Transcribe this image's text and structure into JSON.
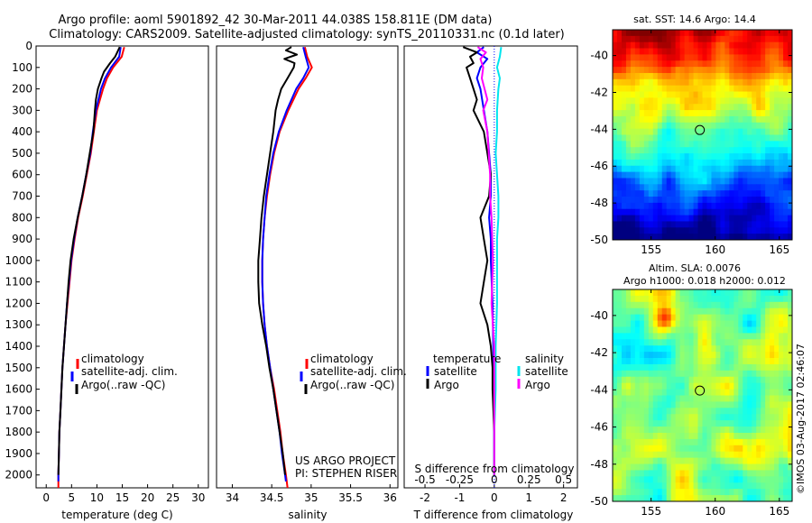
{
  "title_line1": "Argo profile: aoml 5901892_42 30-Mar-2011 44.038S 158.811E (DM data)",
  "title_line2": "Climatology: CARS2009. Satellite-adjusted climatology: synTS_20110331.nc (0.1d later)",
  "colors": {
    "climatology": "#ff0000",
    "satellite": "#0000ff",
    "argo": "#000000",
    "sal_satellite": "#00e5ee",
    "sal_argo": "#ff00ff",
    "zero_line": "#0000ff"
  },
  "legend_temp": {
    "climatology": "climatology",
    "satellite": "satellite-adj. clim.",
    "argo": "Argo(..raw -QC)"
  },
  "legend_diff": {
    "temp_header": "temperature",
    "sal_header": "salinity",
    "satellite": "satellite",
    "argo": "Argo"
  },
  "project_line1": "US ARGO PROJECT",
  "project_line2": "PI: STEPHEN RISER",
  "s_diff_label": "S difference from climatology",
  "map_top_title": "sat. SST: 14.6  Argo: 14.4",
  "map_bottom_title1": "Altim. SLA: 0.0076",
  "map_bottom_title2": "Argo h1000: 0.018  h2000: 0.012",
  "watermark": "©IMOS 03-Aug-2017 02:46:07",
  "chart_data": [
    {
      "type": "line",
      "id": "temperature",
      "xlabel": "temperature (deg C)",
      "ylabel": "",
      "xlim": [
        -2,
        32
      ],
      "ylim": [
        2060,
        0
      ],
      "xticks": [
        0,
        5,
        10,
        15,
        20,
        25,
        30
      ],
      "yticks": [
        0,
        100,
        200,
        300,
        400,
        500,
        600,
        700,
        800,
        900,
        1000,
        1100,
        1200,
        1300,
        1400,
        1500,
        1600,
        1700,
        1800,
        1900,
        2000
      ],
      "series": [
        {
          "name": "climatology",
          "color": "#ff0000",
          "depth": [
            5,
            50,
            100,
            150,
            200,
            300,
            400,
            500,
            600,
            700,
            800,
            900,
            1000,
            1100,
            1200,
            1300,
            1400,
            1500,
            1600,
            1700,
            1800,
            1900,
            2000,
            2060
          ],
          "value": [
            15.4,
            14.9,
            13.2,
            12.0,
            11.2,
            10.0,
            9.4,
            8.8,
            8.0,
            7.2,
            6.3,
            5.6,
            5.0,
            4.6,
            4.2,
            3.8,
            3.5,
            3.2,
            3.0,
            2.8,
            2.6,
            2.5,
            2.4,
            2.4
          ]
        },
        {
          "name": "satellite-adj. clim.",
          "color": "#0000ff",
          "depth": [
            5,
            50,
            100,
            150,
            200,
            300,
            400,
            500,
            600,
            700,
            800,
            900,
            1000,
            1100,
            1200,
            1300,
            1400,
            1500,
            1600,
            1700,
            1800,
            1900,
            2000,
            2030
          ],
          "value": [
            14.7,
            14.4,
            12.8,
            11.6,
            10.8,
            9.8,
            9.2,
            8.7,
            7.9,
            7.1,
            6.2,
            5.5,
            4.9,
            4.5,
            4.1,
            3.8,
            3.5,
            3.2,
            3.0,
            2.8,
            2.6,
            2.5,
            2.4,
            2.4
          ]
        },
        {
          "name": "Argo(..raw -QC)",
          "color": "#000000",
          "depth": [
            5,
            50,
            80,
            120,
            150,
            200,
            250,
            300,
            400,
            500,
            600,
            700,
            800,
            900,
            1000,
            1100,
            1200,
            1300,
            1400,
            1500,
            1600,
            1700,
            1800,
            1900,
            2000
          ],
          "value": [
            14.5,
            13.6,
            12.6,
            11.4,
            10.9,
            10.2,
            9.8,
            9.6,
            9.3,
            8.6,
            7.9,
            7.1,
            6.2,
            5.4,
            4.8,
            4.4,
            4.1,
            3.8,
            3.5,
            3.2,
            3.0,
            2.8,
            2.6,
            2.5,
            2.4
          ]
        }
      ]
    },
    {
      "type": "line",
      "id": "salinity",
      "xlabel": "salinity",
      "ylabel": "",
      "xlim": [
        33.8,
        36.1
      ],
      "ylim": [
        2060,
        0
      ],
      "xticks": [
        34,
        34.5,
        35,
        35.5,
        36
      ],
      "series": [
        {
          "name": "climatology",
          "color": "#ff0000",
          "depth": [
            5,
            50,
            100,
            150,
            200,
            300,
            400,
            500,
            600,
            700,
            800,
            900,
            1000,
            1100,
            1200,
            1300,
            1400,
            1500,
            1600,
            1700,
            1800,
            1900,
            2000,
            2060
          ],
          "value": [
            34.92,
            34.95,
            35.01,
            34.93,
            34.84,
            34.71,
            34.6,
            34.53,
            34.48,
            34.44,
            34.41,
            34.39,
            34.38,
            34.38,
            34.39,
            34.41,
            34.44,
            34.48,
            34.53,
            34.57,
            34.61,
            34.64,
            34.68,
            34.7
          ]
        },
        {
          "name": "satellite-adj. clim.",
          "color": "#0000ff",
          "depth": [
            5,
            50,
            100,
            150,
            200,
            300,
            400,
            500,
            600,
            700,
            800,
            900,
            1000,
            1100,
            1200,
            1300,
            1400,
            1500,
            1600,
            1700,
            1800,
            1900,
            2000,
            2030
          ],
          "value": [
            34.9,
            34.93,
            34.97,
            34.9,
            34.81,
            34.69,
            34.59,
            34.52,
            34.47,
            34.43,
            34.41,
            34.39,
            34.38,
            34.38,
            34.39,
            34.41,
            34.44,
            34.48,
            34.52,
            34.56,
            34.6,
            34.63,
            34.67,
            34.68
          ]
        },
        {
          "name": "Argo(..raw -QC)",
          "color": "#000000",
          "depth": [
            5,
            20,
            40,
            60,
            80,
            100,
            150,
            200,
            250,
            300,
            400,
            500,
            600,
            700,
            800,
            900,
            1000,
            1100,
            1200,
            1300,
            1400,
            1500,
            1600,
            1700,
            1800,
            1900,
            2000
          ],
          "value": [
            34.75,
            34.68,
            34.82,
            34.66,
            34.79,
            34.78,
            34.7,
            34.62,
            34.58,
            34.55,
            34.52,
            34.48,
            34.44,
            34.4,
            34.37,
            34.35,
            34.33,
            34.33,
            34.34,
            34.38,
            34.43,
            34.47,
            34.52,
            34.56,
            34.6,
            34.64,
            34.67
          ]
        }
      ]
    },
    {
      "type": "line",
      "id": "difference",
      "xlabel": "T difference from climatology",
      "ylabel": "",
      "xlim": [
        -2.6,
        2.4
      ],
      "ylim": [
        2060,
        0
      ],
      "xticks": [
        -2,
        -1,
        0,
        1,
        2
      ],
      "s_xticks_labels": [
        "-0.5",
        "-0.25",
        "0",
        "0.25",
        "0.5"
      ],
      "s_scale": 4,
      "series": [
        {
          "name": "temperature satellite",
          "color": "#0000ff",
          "variable": "T",
          "depth": [
            5,
            30,
            60,
            100,
            150,
            200,
            300,
            400,
            500,
            600,
            700,
            800,
            900,
            1000,
            1200,
            1400,
            1600,
            1800,
            2000
          ],
          "value": [
            -0.3,
            -0.5,
            -0.2,
            -0.4,
            -0.5,
            -0.4,
            -0.3,
            -0.2,
            -0.15,
            -0.1,
            -0.1,
            -0.15,
            -0.1,
            -0.1,
            -0.05,
            -0.03,
            0.0,
            0.0,
            0.0
          ]
        },
        {
          "name": "temperature Argo",
          "color": "#000000",
          "variable": "T",
          "depth": [
            5,
            30,
            50,
            80,
            100,
            150,
            200,
            250,
            300,
            400,
            500,
            600,
            700,
            800,
            900,
            1000,
            1100,
            1200,
            1300,
            1400,
            1500,
            1600,
            1800,
            2000
          ],
          "value": [
            -0.9,
            -0.5,
            -0.7,
            -0.6,
            -0.8,
            -0.7,
            -0.6,
            -0.5,
            -0.6,
            -0.3,
            -0.2,
            -0.1,
            -0.15,
            -0.4,
            -0.3,
            -0.2,
            -0.3,
            -0.4,
            -0.2,
            -0.1,
            -0.05,
            -0.05,
            0.0,
            0.0
          ]
        },
        {
          "name": "salinity satellite",
          "color": "#00e5ee",
          "variable": "S",
          "depth": [
            5,
            50,
            100,
            150,
            200,
            300,
            400,
            500,
            600,
            700,
            800,
            900,
            1000,
            1200,
            1400,
            1600,
            1800,
            2000
          ],
          "value": [
            0.05,
            0.04,
            0.02,
            0.04,
            0.03,
            0.02,
            0.02,
            0.01,
            0.02,
            0.03,
            0.03,
            0.02,
            0.02,
            0.02,
            0.01,
            0.01,
            0.0,
            0.0
          ]
        },
        {
          "name": "salinity Argo",
          "color": "#ff00ff",
          "variable": "S",
          "depth": [
            5,
            30,
            60,
            100,
            150,
            200,
            250,
            300,
            400,
            500,
            600,
            700,
            800,
            1000,
            1200,
            1400,
            1600,
            1800,
            2000
          ],
          "value": [
            -0.12,
            -0.06,
            -0.1,
            -0.08,
            -0.09,
            -0.07,
            -0.05,
            -0.08,
            -0.05,
            -0.04,
            -0.03,
            -0.03,
            -0.02,
            -0.01,
            -0.02,
            0.0,
            0.0,
            0.0,
            0.0
          ]
        }
      ]
    },
    {
      "type": "heatmap",
      "id": "sst_map",
      "title": "sat. SST: 14.6  Argo: 14.4",
      "xlim": [
        152,
        166
      ],
      "ylim": [
        -50,
        -38.6
      ],
      "xticks": [
        155,
        160,
        165
      ],
      "yticks": [
        -40,
        -42,
        -44,
        -46,
        -48,
        -50
      ],
      "marker": {
        "lon": 158.8,
        "lat": -44.04
      },
      "colormap": "jet"
    },
    {
      "type": "heatmap",
      "id": "sla_map",
      "title": "Altim. SLA: 0.0076",
      "xlim": [
        152,
        166
      ],
      "ylim": [
        -50,
        -38.6
      ],
      "xticks": [
        155,
        160,
        165
      ],
      "yticks": [
        -40,
        -42,
        -44,
        -46,
        -48,
        -50
      ],
      "marker": {
        "lon": 158.8,
        "lat": -44.04
      },
      "colormap": "jet"
    }
  ]
}
